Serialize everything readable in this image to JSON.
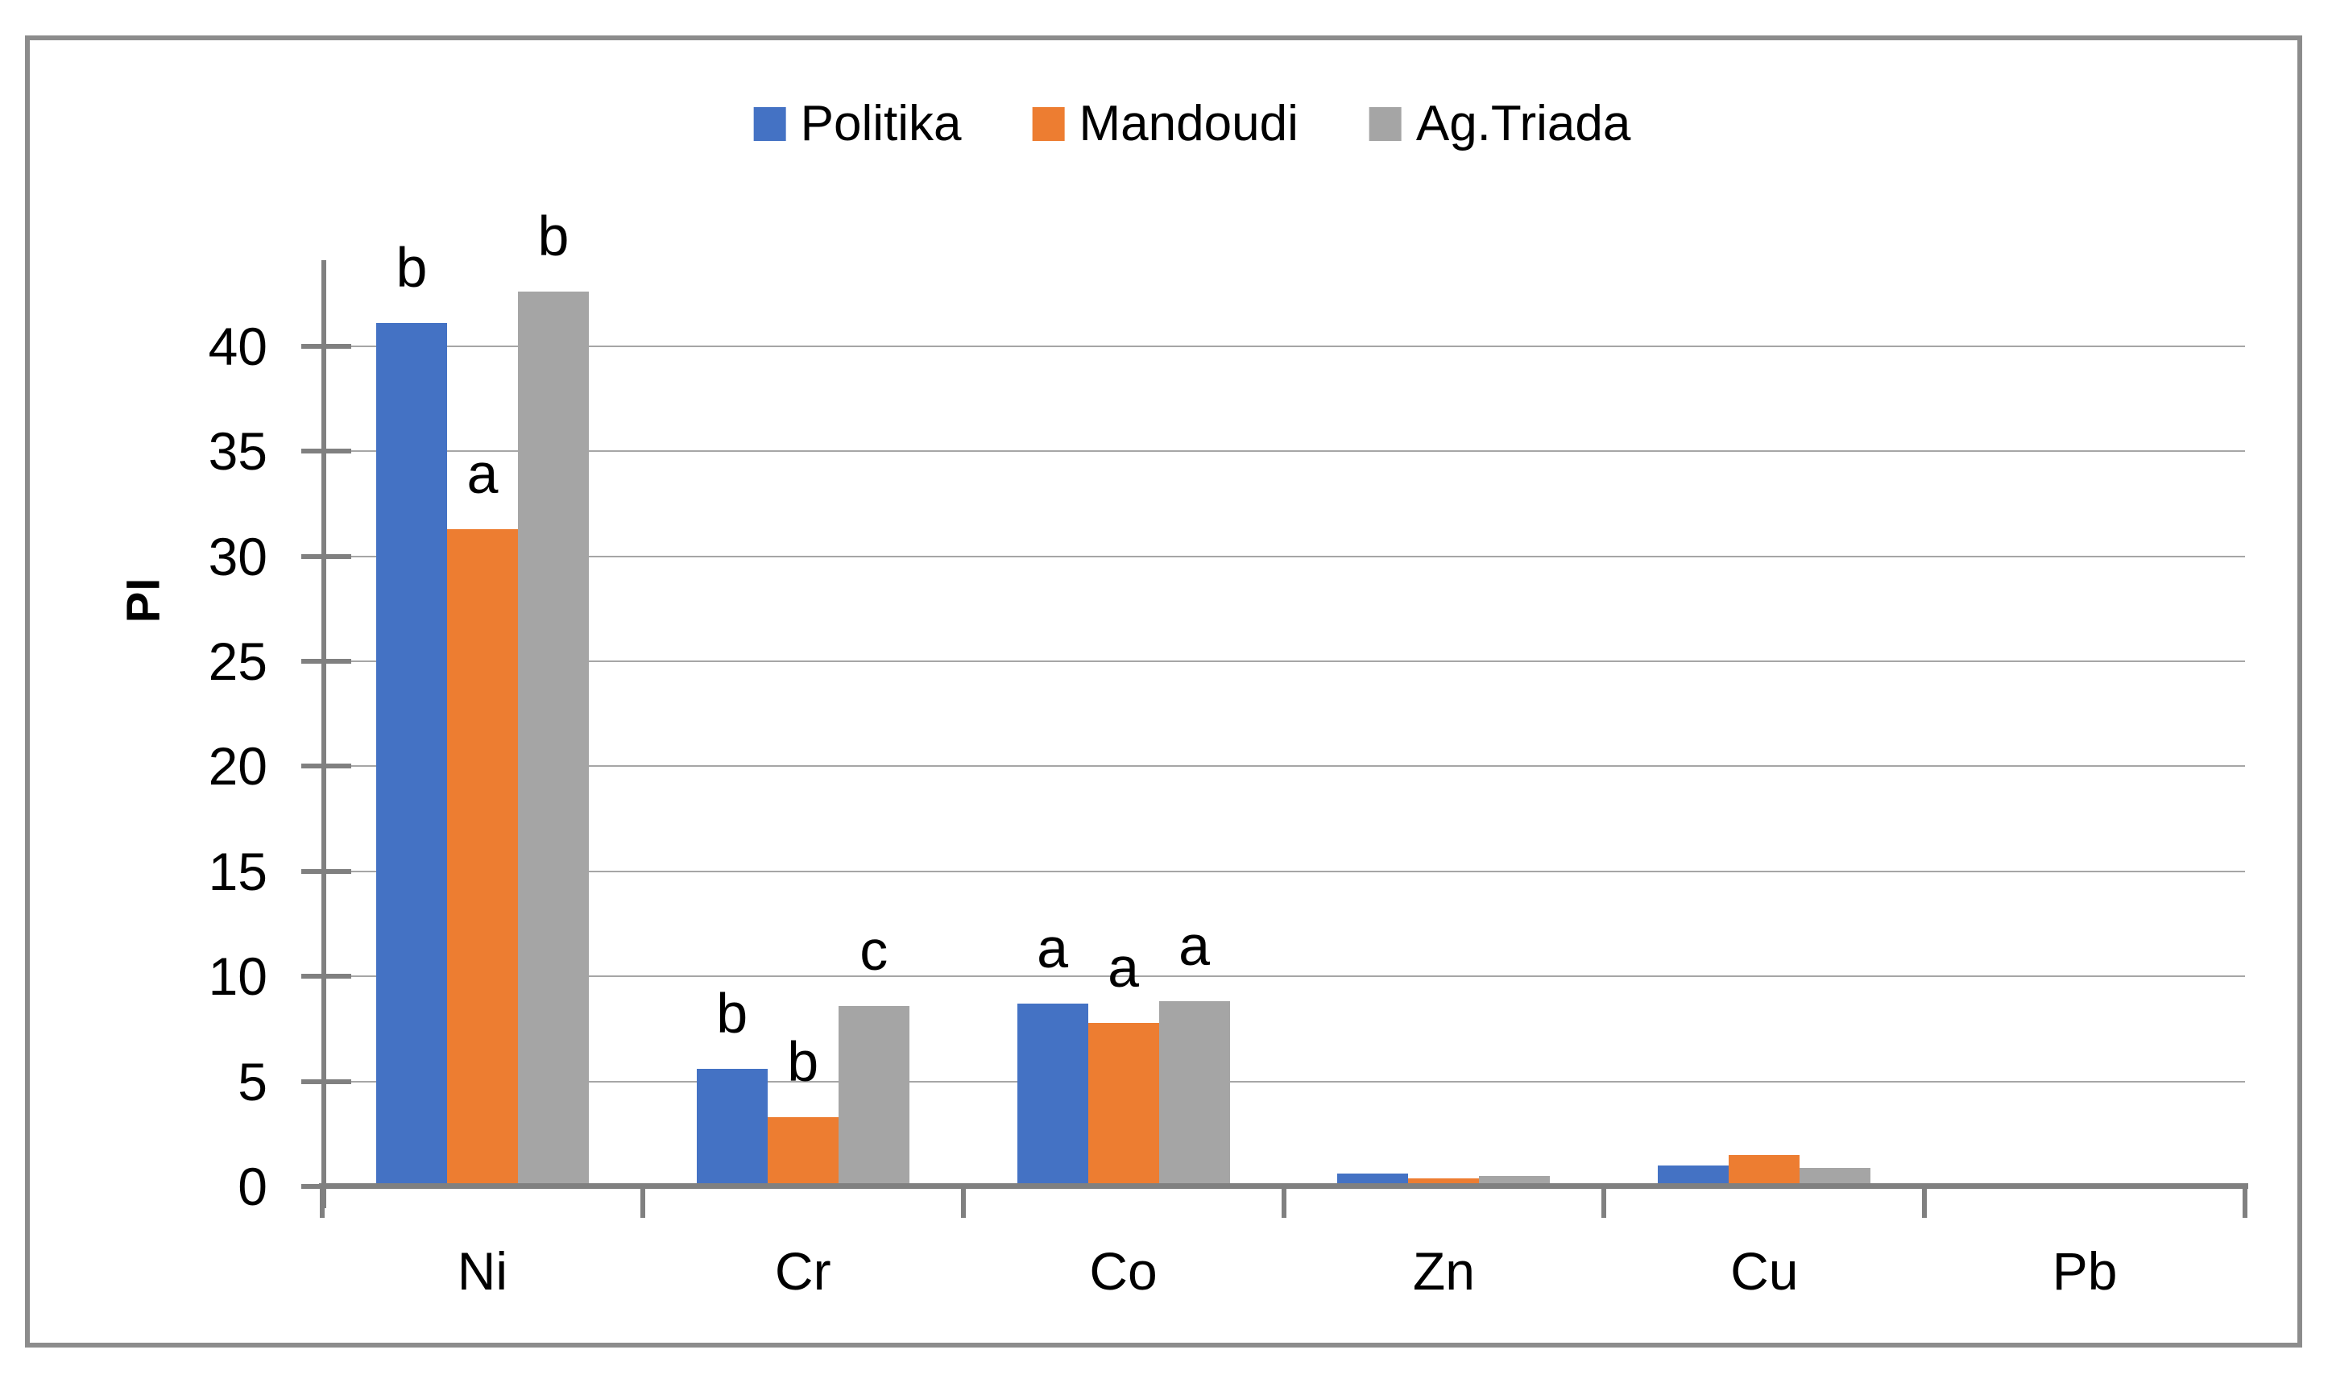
{
  "chart_data": {
    "type": "bar",
    "title": "",
    "xlabel": "",
    "ylabel": "PI",
    "categories": [
      "Ni",
      "Cr",
      "Co",
      "Zn",
      "Cu",
      "Pb"
    ],
    "series": [
      {
        "name": "Politika",
        "color": "#4472C4",
        "values": [
          41.1,
          5.6,
          8.7,
          0.6,
          1.0,
          0.15
        ],
        "letters": [
          "b",
          "b",
          "a",
          "",
          "",
          ""
        ]
      },
      {
        "name": "Mandoudi",
        "color": "#ED7D31",
        "values": [
          31.3,
          3.3,
          7.8,
          0.4,
          1.5,
          0.08
        ],
        "letters": [
          "a",
          "b",
          "a",
          "",
          "",
          ""
        ]
      },
      {
        "name": "Ag.Triada",
        "color": "#A5A5A5",
        "values": [
          42.6,
          8.6,
          8.8,
          0.5,
          0.9,
          0.03
        ],
        "letters": [
          "b",
          "c",
          "a",
          "",
          "",
          ""
        ]
      }
    ],
    "yticks": [
      0,
      5,
      10,
      15,
      20,
      25,
      30,
      35,
      40
    ],
    "ylim": [
      0,
      44
    ],
    "grid": true,
    "legend_position": "top"
  },
  "colors": {
    "axis": "#808080",
    "gridline": "#A6A6A6",
    "border": "#8C8C8C",
    "text": "#000000",
    "background": "#FFFFFF"
  }
}
